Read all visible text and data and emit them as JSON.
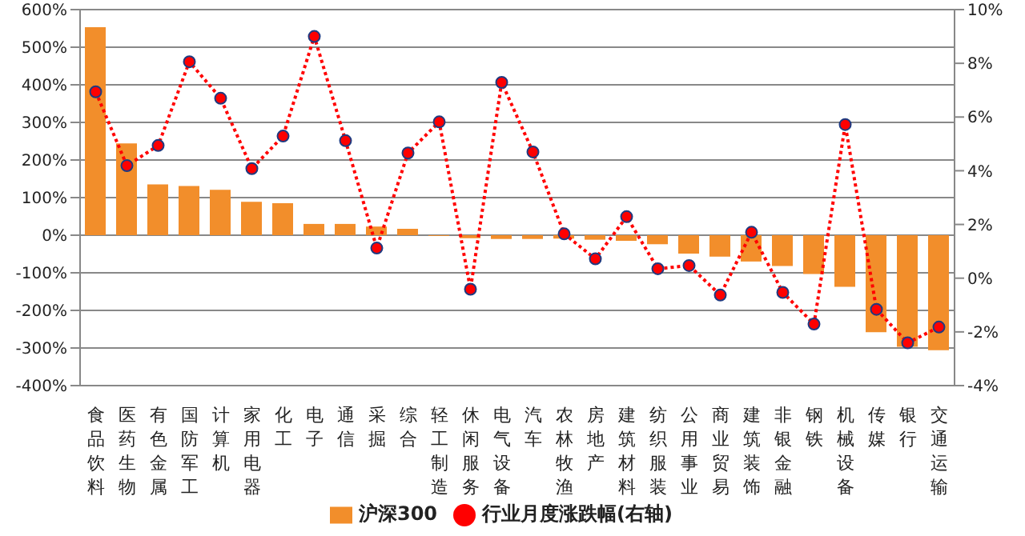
{
  "chart_data": {
    "type": "bar",
    "categories": [
      "食品饮料",
      "医药生物",
      "有色金属",
      "国防军工",
      "计算机",
      "家用电器",
      "化工",
      "电子",
      "通信",
      "采掘",
      "综合",
      "轻工制造",
      "休闲服务",
      "电气设备",
      "汽车",
      "农林牧渔",
      "房地产",
      "建筑材料",
      "纺织服装",
      "公用事业",
      "商业贸易",
      "建筑装饰",
      "非银金融",
      "钢铁",
      "机械设备",
      "传媒",
      "银行",
      "交通运输"
    ],
    "series": [
      {
        "name": "沪深300",
        "color": "#f28e2b",
        "values": [
          553,
          244,
          135,
          131,
          121,
          89,
          85,
          30,
          30,
          23,
          17,
          -2,
          -8,
          -10,
          -10,
          -9,
          -12,
          -15,
          -24,
          -49,
          -57,
          -70,
          -82,
          -103,
          -137,
          -258,
          -297,
          -306
        ]
      },
      {
        "name": "行业月度涨跌幅(右轴)",
        "type": "line",
        "axis": "y2",
        "color": "#ff0000",
        "marker": "circle",
        "line_style": "dotted",
        "values": [
          6.94,
          4.19,
          4.94,
          8.06,
          6.7,
          4.08,
          5.29,
          9.0,
          5.12,
          1.12,
          4.66,
          5.82,
          -0.41,
          7.29,
          4.7,
          1.65,
          0.72,
          2.29,
          0.35,
          0.47,
          -0.63,
          1.71,
          -0.53,
          -1.71,
          5.72,
          -1.16,
          -2.41,
          -1.82
        ]
      }
    ],
    "ylim": [
      -400,
      600
    ],
    "yticks": [
      {
        "value": -400,
        "label": "-400%"
      },
      {
        "value": -300,
        "label": "-300%"
      },
      {
        "value": -200,
        "label": "-200%"
      },
      {
        "value": -100,
        "label": "-100%"
      },
      {
        "value": 0,
        "label": "0%"
      },
      {
        "value": 100,
        "label": "100%"
      },
      {
        "value": 200,
        "label": "200%"
      },
      {
        "value": 300,
        "label": "300%"
      },
      {
        "value": 400,
        "label": "400%"
      },
      {
        "value": 500,
        "label": "500%"
      },
      {
        "value": 600,
        "label": "600%"
      }
    ],
    "y2lim": [
      -4,
      10
    ],
    "y2ticks": [
      {
        "value": -4,
        "label": "-4%"
      },
      {
        "value": -2,
        "label": "-2%"
      },
      {
        "value": 0,
        "label": "0%"
      },
      {
        "value": 2,
        "label": "2%"
      },
      {
        "value": 4,
        "label": "4%"
      },
      {
        "value": 6,
        "label": "6%"
      },
      {
        "value": 8,
        "label": "8%"
      },
      {
        "value": 10,
        "label": "10%"
      }
    ],
    "grid": "y",
    "legend": "bottom"
  }
}
